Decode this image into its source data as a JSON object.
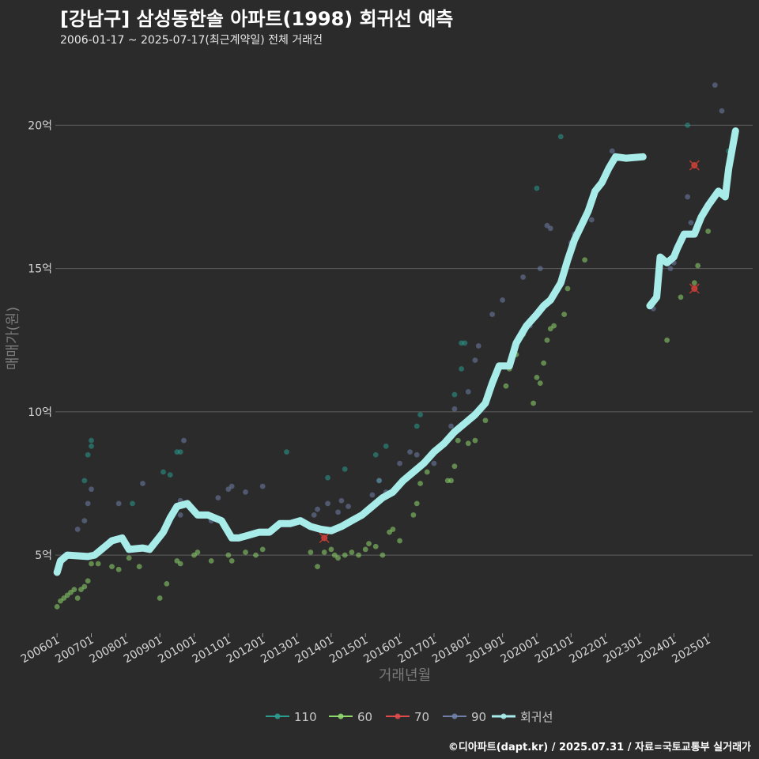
{
  "title": "[강남구] 삼성동한솔 아파트(1998) 회귀선 예측",
  "subtitle": "2006-01-17 ~ 2025-07-17(최근계약일) 전체 거래건",
  "caption": "©디아파트(dapt.kr) / 2025.07.31 / 자료=국토교통부 실거래가",
  "chart_data": {
    "type": "scatter",
    "title": "[강남구] 삼성동한솔 아파트(1998) 회귀선 예측",
    "xlabel": "거래년월",
    "ylabel": "매매가(원)",
    "x_unit": "year (decimal)",
    "y_unit": "억원",
    "xlim": [
      2005.95,
      2026.3
    ],
    "ylim": [
      2.3,
      22.3
    ],
    "y_ticks": [
      5,
      10,
      15,
      20
    ],
    "y_tick_labels": [
      "5억",
      "10억",
      "15억",
      "20억"
    ],
    "x_ticks": [
      2006,
      2007,
      2008,
      2009,
      2010,
      2011,
      2012,
      2013,
      2014,
      2015,
      2016,
      2017,
      2018,
      2019,
      2020,
      2021,
      2022,
      2023,
      2024,
      2025
    ],
    "x_tick_labels": [
      "200601",
      "200701",
      "200801",
      "200901",
      "201001",
      "201101",
      "201201",
      "201301",
      "201401",
      "201501",
      "201601",
      "201701",
      "201801",
      "201901",
      "202001",
      "202101",
      "202201",
      "202301",
      "202401",
      "202501"
    ],
    "grid": true,
    "legend_position": "bottom",
    "series": [
      {
        "name": "110",
        "color": "#2a9d8f",
        "points": [
          [
            2006.8,
            7.6
          ],
          [
            2006.9,
            8.5
          ],
          [
            2007.0,
            8.8
          ],
          [
            2007.0,
            9.0
          ],
          [
            2008.2,
            6.8
          ],
          [
            2009.1,
            7.9
          ],
          [
            2009.3,
            7.8
          ],
          [
            2009.5,
            8.6
          ],
          [
            2009.6,
            8.6
          ],
          [
            2012.7,
            8.6
          ],
          [
            2013.9,
            7.7
          ],
          [
            2014.4,
            8.0
          ],
          [
            2015.3,
            8.5
          ],
          [
            2015.4,
            7.6
          ],
          [
            2015.6,
            8.8
          ],
          [
            2016.5,
            9.5
          ],
          [
            2016.6,
            9.9
          ],
          [
            2017.6,
            10.6
          ],
          [
            2017.8,
            11.5
          ],
          [
            2017.8,
            12.4
          ],
          [
            2017.9,
            12.4
          ],
          [
            2020.0,
            17.8
          ],
          [
            2020.7,
            19.6
          ],
          [
            2024.4,
            20.0
          ],
          [
            2025.6,
            19.1
          ]
        ]
      },
      {
        "name": "60",
        "color": "#8fd86e",
        "points": [
          [
            2006.0,
            3.2
          ],
          [
            2006.1,
            3.4
          ],
          [
            2006.2,
            3.5
          ],
          [
            2006.3,
            3.6
          ],
          [
            2006.4,
            3.7
          ],
          [
            2006.5,
            3.8
          ],
          [
            2006.6,
            3.5
          ],
          [
            2006.7,
            3.8
          ],
          [
            2006.8,
            3.9
          ],
          [
            2006.9,
            4.1
          ],
          [
            2007.0,
            4.7
          ],
          [
            2007.2,
            4.7
          ],
          [
            2007.6,
            4.6
          ],
          [
            2007.8,
            4.5
          ],
          [
            2008.1,
            4.9
          ],
          [
            2008.4,
            4.6
          ],
          [
            2009.0,
            3.5
          ],
          [
            2009.2,
            4.0
          ],
          [
            2009.5,
            4.8
          ],
          [
            2009.6,
            4.7
          ],
          [
            2010.0,
            5.0
          ],
          [
            2010.1,
            5.1
          ],
          [
            2010.5,
            4.8
          ],
          [
            2011.0,
            5.0
          ],
          [
            2011.1,
            4.8
          ],
          [
            2011.5,
            5.1
          ],
          [
            2011.8,
            5.0
          ],
          [
            2012.0,
            5.2
          ],
          [
            2013.4,
            5.1
          ],
          [
            2013.6,
            4.6
          ],
          [
            2013.8,
            5.1
          ],
          [
            2014.0,
            5.2
          ],
          [
            2014.1,
            5.0
          ],
          [
            2014.2,
            4.9
          ],
          [
            2014.4,
            5.0
          ],
          [
            2014.6,
            5.1
          ],
          [
            2014.8,
            5.0
          ],
          [
            2015.0,
            5.2
          ],
          [
            2015.1,
            5.4
          ],
          [
            2015.3,
            5.3
          ],
          [
            2015.5,
            5.0
          ],
          [
            2015.7,
            5.8
          ],
          [
            2015.8,
            5.9
          ],
          [
            2016.0,
            5.5
          ],
          [
            2016.4,
            6.4
          ],
          [
            2016.5,
            6.8
          ],
          [
            2016.6,
            7.5
          ],
          [
            2016.8,
            7.9
          ],
          [
            2017.4,
            7.6
          ],
          [
            2017.5,
            7.6
          ],
          [
            2017.6,
            8.1
          ],
          [
            2017.7,
            9.0
          ],
          [
            2018.0,
            8.9
          ],
          [
            2018.2,
            9.0
          ],
          [
            2018.5,
            9.7
          ],
          [
            2019.1,
            10.9
          ],
          [
            2019.2,
            11.5
          ],
          [
            2019.4,
            12.0
          ],
          [
            2019.6,
            12.7
          ],
          [
            2019.9,
            10.3
          ],
          [
            2020.0,
            11.2
          ],
          [
            2020.1,
            11.0
          ],
          [
            2020.2,
            11.7
          ],
          [
            2020.3,
            12.5
          ],
          [
            2020.4,
            12.9
          ],
          [
            2020.5,
            13.0
          ],
          [
            2020.8,
            13.4
          ],
          [
            2020.9,
            14.3
          ],
          [
            2021.4,
            15.3
          ],
          [
            2023.8,
            12.5
          ],
          [
            2024.2,
            14.0
          ],
          [
            2024.6,
            14.5
          ],
          [
            2024.7,
            15.1
          ],
          [
            2025.0,
            16.3
          ]
        ]
      },
      {
        "name": "70",
        "color": "#e04a4a",
        "points": [
          [
            2013.8,
            5.6
          ],
          [
            2024.6,
            18.6
          ],
          [
            2024.6,
            14.3
          ]
        ]
      },
      {
        "name": "90",
        "color": "#6f7fa8",
        "points": [
          [
            2006.6,
            5.9
          ],
          [
            2006.8,
            6.2
          ],
          [
            2006.9,
            6.8
          ],
          [
            2007.0,
            7.3
          ],
          [
            2007.8,
            6.8
          ],
          [
            2008.5,
            7.5
          ],
          [
            2009.6,
            6.9
          ],
          [
            2009.6,
            6.4
          ],
          [
            2009.7,
            9.0
          ],
          [
            2010.5,
            6.2
          ],
          [
            2010.7,
            7.0
          ],
          [
            2011.0,
            7.3
          ],
          [
            2011.1,
            7.4
          ],
          [
            2011.5,
            7.2
          ],
          [
            2012.0,
            7.4
          ],
          [
            2013.5,
            6.4
          ],
          [
            2013.6,
            6.6
          ],
          [
            2013.9,
            6.8
          ],
          [
            2014.2,
            6.5
          ],
          [
            2014.3,
            6.9
          ],
          [
            2014.5,
            6.7
          ],
          [
            2015.2,
            7.1
          ],
          [
            2015.4,
            7.6
          ],
          [
            2015.6,
            7.2
          ],
          [
            2016.0,
            8.2
          ],
          [
            2016.3,
            8.6
          ],
          [
            2016.5,
            8.5
          ],
          [
            2017.0,
            8.2
          ],
          [
            2017.5,
            9.5
          ],
          [
            2017.6,
            10.1
          ],
          [
            2018.0,
            10.7
          ],
          [
            2018.2,
            11.8
          ],
          [
            2018.3,
            12.3
          ],
          [
            2018.7,
            13.4
          ],
          [
            2019.0,
            13.9
          ],
          [
            2019.6,
            14.7
          ],
          [
            2019.8,
            13.0
          ],
          [
            2020.1,
            15.0
          ],
          [
            2020.3,
            16.5
          ],
          [
            2020.4,
            16.4
          ],
          [
            2021.0,
            15.9
          ],
          [
            2021.1,
            16.2
          ],
          [
            2021.6,
            16.7
          ],
          [
            2022.2,
            19.1
          ],
          [
            2023.4,
            13.6
          ],
          [
            2023.9,
            15.0
          ],
          [
            2024.0,
            15.2
          ],
          [
            2024.2,
            15.9
          ],
          [
            2024.4,
            17.5
          ],
          [
            2024.5,
            16.6
          ],
          [
            2025.2,
            21.4
          ],
          [
            2025.4,
            20.5
          ]
        ]
      }
    ],
    "regression": {
      "name": "회귀선",
      "color": "#a7ece9",
      "segments": [
        [
          [
            2006.0,
            4.4
          ],
          [
            2006.1,
            4.8
          ],
          [
            2006.3,
            5.0
          ],
          [
            2006.9,
            4.95
          ],
          [
            2007.1,
            5.0
          ],
          [
            2007.4,
            5.3
          ],
          [
            2007.6,
            5.5
          ],
          [
            2007.9,
            5.6
          ],
          [
            2008.1,
            5.2
          ],
          [
            2008.5,
            5.25
          ],
          [
            2008.7,
            5.2
          ],
          [
            2008.9,
            5.5
          ],
          [
            2009.1,
            5.8
          ],
          [
            2009.3,
            6.3
          ],
          [
            2009.5,
            6.7
          ],
          [
            2009.8,
            6.8
          ],
          [
            2010.1,
            6.4
          ],
          [
            2010.4,
            6.4
          ],
          [
            2010.8,
            6.2
          ],
          [
            2011.1,
            5.6
          ],
          [
            2011.3,
            5.6
          ],
          [
            2011.6,
            5.7
          ],
          [
            2011.9,
            5.8
          ],
          [
            2012.2,
            5.8
          ],
          [
            2012.5,
            6.1
          ],
          [
            2012.8,
            6.1
          ],
          [
            2013.1,
            6.2
          ],
          [
            2013.4,
            6.0
          ],
          [
            2013.7,
            5.9
          ],
          [
            2014.0,
            5.85
          ],
          [
            2014.3,
            6.0
          ],
          [
            2014.6,
            6.2
          ],
          [
            2014.9,
            6.4
          ],
          [
            2015.2,
            6.7
          ],
          [
            2015.5,
            7.0
          ],
          [
            2015.8,
            7.2
          ],
          [
            2016.1,
            7.6
          ],
          [
            2016.4,
            7.9
          ],
          [
            2016.7,
            8.2
          ],
          [
            2017.0,
            8.6
          ],
          [
            2017.3,
            8.9
          ],
          [
            2017.6,
            9.3
          ],
          [
            2017.9,
            9.6
          ],
          [
            2018.2,
            9.9
          ],
          [
            2018.5,
            10.3
          ],
          [
            2018.7,
            11.0
          ],
          [
            2018.9,
            11.6
          ],
          [
            2019.2,
            11.6
          ],
          [
            2019.4,
            12.4
          ],
          [
            2019.7,
            13.0
          ],
          [
            2020.0,
            13.4
          ],
          [
            2020.2,
            13.7
          ],
          [
            2020.4,
            13.9
          ],
          [
            2020.7,
            14.5
          ],
          [
            2020.9,
            15.3
          ],
          [
            2021.1,
            16.0
          ],
          [
            2021.3,
            16.5
          ],
          [
            2021.5,
            17.0
          ],
          [
            2021.7,
            17.7
          ],
          [
            2021.9,
            18.0
          ],
          [
            2022.1,
            18.5
          ],
          [
            2022.3,
            18.9
          ],
          [
            2022.6,
            18.85
          ],
          [
            2023.1,
            18.9
          ]
        ],
        [
          [
            2023.3,
            13.7
          ],
          [
            2023.5,
            14.0
          ],
          [
            2023.6,
            15.4
          ],
          [
            2023.8,
            15.2
          ],
          [
            2024.0,
            15.4
          ],
          [
            2024.1,
            15.7
          ],
          [
            2024.3,
            16.2
          ],
          [
            2024.6,
            16.2
          ],
          [
            2024.8,
            16.8
          ],
          [
            2025.0,
            17.2
          ],
          [
            2025.3,
            17.7
          ],
          [
            2025.5,
            17.5
          ],
          [
            2025.6,
            18.5
          ],
          [
            2025.8,
            19.8
          ]
        ]
      ]
    }
  },
  "legend": [
    {
      "label": "110",
      "color": "#2a9d8f"
    },
    {
      "label": "60",
      "color": "#8fd86e"
    },
    {
      "label": "70",
      "color": "#e04a4a"
    },
    {
      "label": "90",
      "color": "#6f7fa8"
    },
    {
      "label": "회귀선",
      "color": "#a7ece9"
    }
  ]
}
